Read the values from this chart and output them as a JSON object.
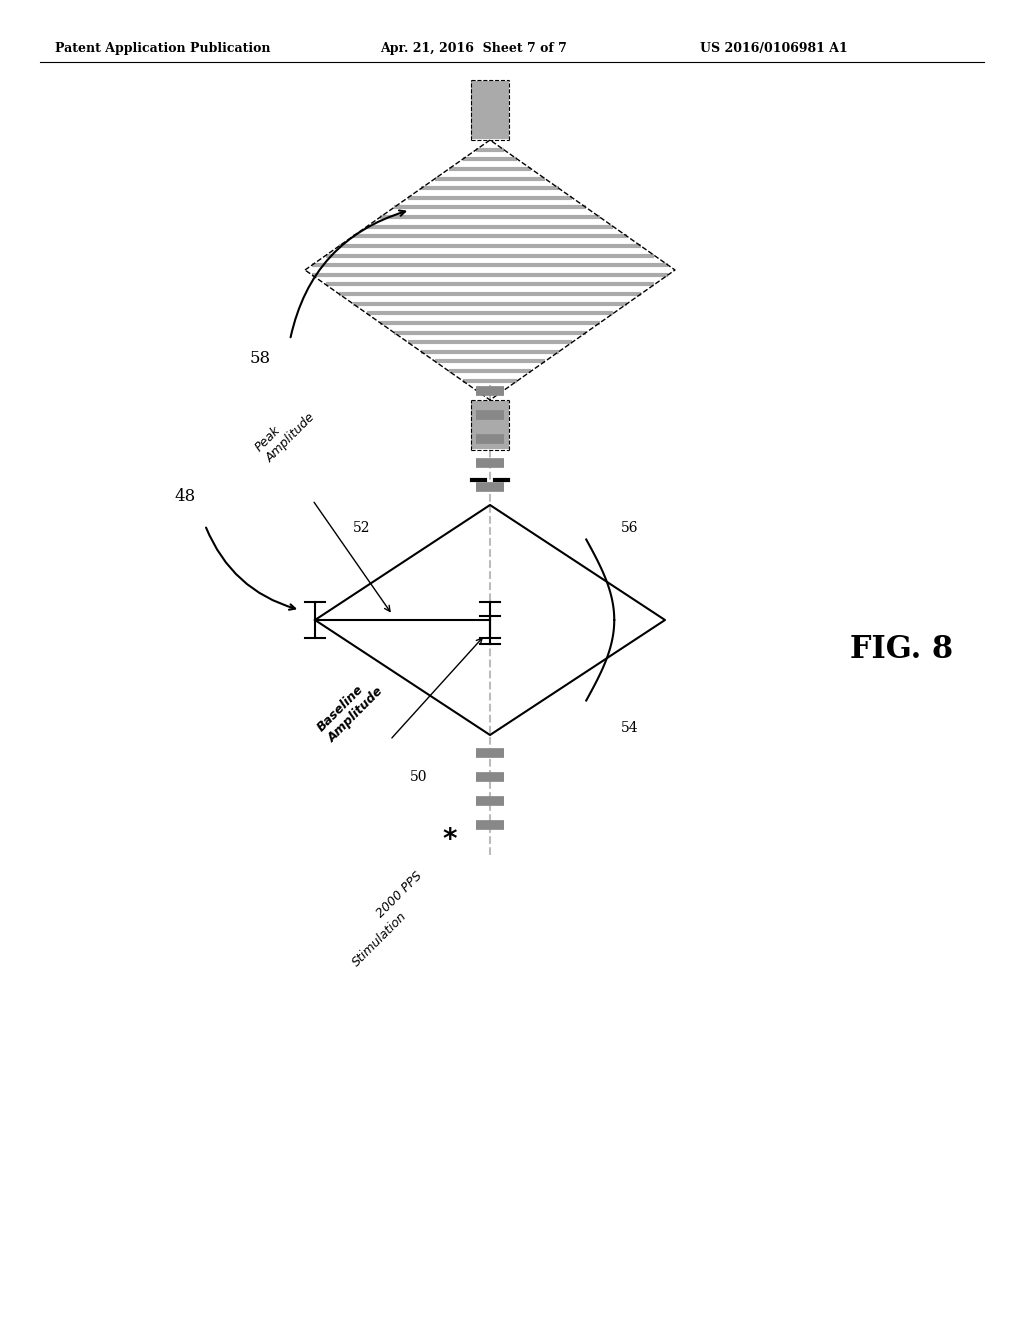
{
  "header_left": "Patent Application Publication",
  "header_middle": "Apr. 21, 2016  Sheet 7 of 7",
  "header_right": "US 2016/0106981 A1",
  "fig_label": "FIG. 8",
  "label_58": "58",
  "label_48": "48",
  "label_52": "52",
  "label_50": "50",
  "label_54": "54",
  "label_56": "56",
  "text_peak": "Peak\nAmplitude",
  "text_baseline": "Baseline\nAmplitude",
  "text_stim_line1": "2000 PPS",
  "text_stim_star": "*",
  "text_stim_line2": "Stimulation",
  "bg_color": "#ffffff",
  "line_color": "#000000",
  "gray_color": "#999999"
}
